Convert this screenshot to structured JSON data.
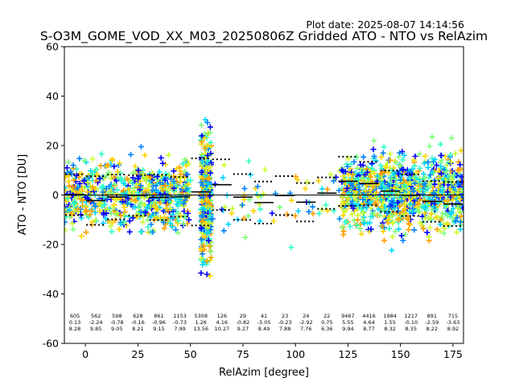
{
  "chart_data": {
    "type": "scatter",
    "title": "S-O3M_GOME_VOD_XX_M03_20250806Z Gridded ATO - NTO vs RelAzim",
    "plot_date": "Plot date: 2025-08-07 14:14:56",
    "xlabel": "RelAzim [degree]",
    "ylabel": "ATO - NTO [DU]",
    "xlim": [
      -10,
      180
    ],
    "ylim": [
      -60,
      60
    ],
    "xticks": [
      0,
      25,
      50,
      75,
      100,
      125,
      150,
      175
    ],
    "yticks": [
      -60,
      -40,
      -20,
      0,
      20,
      40,
      60
    ],
    "grid": false,
    "zero_line": 0,
    "marker": "+",
    "point_colors": [
      "#0000ff",
      "#0080ff",
      "#00d4ff",
      "#2effc8",
      "#7dff7a",
      "#c9ff2e",
      "#ffd400",
      "#ffa000"
    ],
    "bins": [
      {
        "x_from": -10,
        "x_to": 0,
        "count": "605",
        "mean": "0.13",
        "std": "8.28",
        "mean_val": 0.13,
        "std_val": 8.28
      },
      {
        "x_from": 0,
        "x_to": 10,
        "count": "562",
        "mean": "-2.24",
        "std": "9.85",
        "mean_val": -2.24,
        "std_val": 9.85
      },
      {
        "x_from": 10,
        "x_to": 20,
        "count": "598",
        "mean": "-0.78",
        "std": "9.05",
        "mean_val": -0.78,
        "std_val": 9.05
      },
      {
        "x_from": 20,
        "x_to": 30,
        "count": "628",
        "mean": "-0.16",
        "std": "8.21",
        "mean_val": -0.16,
        "std_val": 8.21
      },
      {
        "x_from": 30,
        "x_to": 40,
        "count": "861",
        "mean": "-0.96",
        "std": "9.15",
        "mean_val": -0.96,
        "std_val": 9.15
      },
      {
        "x_from": 40,
        "x_to": 50,
        "count": "1153",
        "mean": "-0.73",
        "std": "7.99",
        "mean_val": -0.73,
        "std_val": 7.99
      },
      {
        "x_from": 50,
        "x_to": 60,
        "count": "5308",
        "mean": "1.26",
        "std": "13.56",
        "mean_val": 1.26,
        "std_val": 13.56
      },
      {
        "x_from": 60,
        "x_to": 70,
        "count": "126",
        "mean": "4.16",
        "std": "10.27",
        "mean_val": 4.16,
        "std_val": 10.27
      },
      {
        "x_from": 70,
        "x_to": 80,
        "count": "29",
        "mean": "-0.82",
        "std": "9.27",
        "mean_val": -0.82,
        "std_val": 9.27
      },
      {
        "x_from": 80,
        "x_to": 90,
        "count": "41",
        "mean": "-3.05",
        "std": "8.49",
        "mean_val": -3.05,
        "std_val": 8.49
      },
      {
        "x_from": 90,
        "x_to": 100,
        "count": "23",
        "mean": "-0.23",
        "std": "7.88",
        "mean_val": -0.23,
        "std_val": 7.88
      },
      {
        "x_from": 100,
        "x_to": 110,
        "count": "24",
        "mean": "-2.92",
        "std": "7.76",
        "mean_val": -2.92,
        "std_val": 7.76
      },
      {
        "x_from": 110,
        "x_to": 120,
        "count": "22",
        "mean": "0.75",
        "std": "6.36",
        "mean_val": 0.75,
        "std_val": 6.36
      },
      {
        "x_from": 120,
        "x_to": 130,
        "count": "9467",
        "mean": "5.55",
        "std": "9.94",
        "mean_val": 5.55,
        "std_val": 9.94
      },
      {
        "x_from": 130,
        "x_to": 140,
        "count": "4416",
        "mean": "4.64",
        "std": "8.77",
        "mean_val": 4.64,
        "std_val": 8.77
      },
      {
        "x_from": 140,
        "x_to": 150,
        "count": "1984",
        "mean": "1.55",
        "std": "8.32",
        "mean_val": 1.55,
        "std_val": 8.32
      },
      {
        "x_from": 150,
        "x_to": 160,
        "count": "1217",
        "mean": "-0.10",
        "std": "8.35",
        "mean_val": -0.1,
        "std_val": 8.35
      },
      {
        "x_from": 160,
        "x_to": 170,
        "count": "891",
        "mean": "-2.59",
        "std": "8.22",
        "mean_val": -2.59,
        "std_val": 8.22
      },
      {
        "x_from": 170,
        "x_to": 180,
        "count": "715",
        "mean": "-3.63",
        "std": "8.92",
        "mean_val": -3.63,
        "std_val": 8.92
      }
    ],
    "point_clusters": [
      {
        "x_from": -10,
        "x_to": 50,
        "y_center": 0,
        "y_spread": 9,
        "n": 700
      },
      {
        "x_from": 55,
        "x_to": 60,
        "y_center": 0,
        "y_spread": 18,
        "n": 350
      },
      {
        "x_from": 60,
        "x_to": 122,
        "y_center": -1,
        "y_spread": 9,
        "n": 70
      },
      {
        "x_from": 122,
        "x_to": 180,
        "y_center": 1,
        "y_spread": 10,
        "n": 1000
      }
    ]
  }
}
